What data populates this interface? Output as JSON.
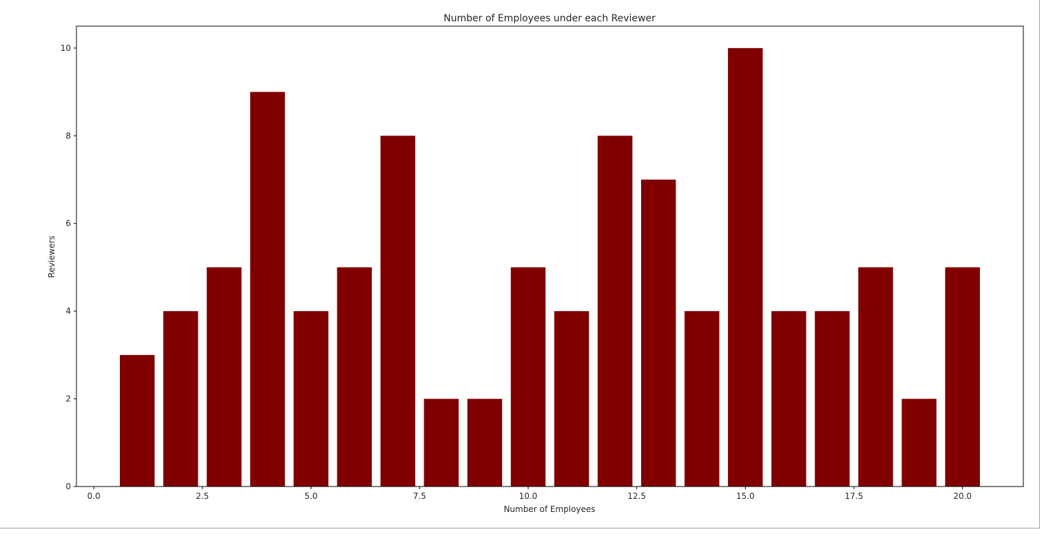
{
  "chart_data": {
    "type": "bar",
    "title": "Number of Employees under each Reviewer",
    "xlabel": "Number of Employees",
    "ylabel": "Reviewers",
    "x": [
      1,
      2,
      3,
      4,
      5,
      6,
      7,
      8,
      9,
      10,
      11,
      12,
      13,
      14,
      15,
      16,
      17,
      18,
      19,
      20
    ],
    "values": [
      3,
      4,
      5,
      9,
      4,
      5,
      8,
      2,
      2,
      5,
      4,
      8,
      7,
      4,
      10,
      4,
      4,
      5,
      2,
      5
    ],
    "bar_width": 0.8,
    "xlim": [
      -0.4,
      21.4
    ],
    "ylim": [
      0,
      10.5
    ],
    "xticks": [
      0.0,
      2.5,
      5.0,
      7.5,
      10.0,
      12.5,
      15.0,
      17.5,
      20.0
    ],
    "xtick_labels": [
      "0.0",
      "2.5",
      "5.0",
      "7.5",
      "10.0",
      "12.5",
      "15.0",
      "17.5",
      "20.0"
    ],
    "yticks": [
      0,
      2,
      4,
      6,
      8,
      10
    ],
    "ytick_labels": [
      "0",
      "2",
      "4",
      "6",
      "8",
      "10"
    ],
    "grid": false,
    "bar_color": "#800000"
  }
}
